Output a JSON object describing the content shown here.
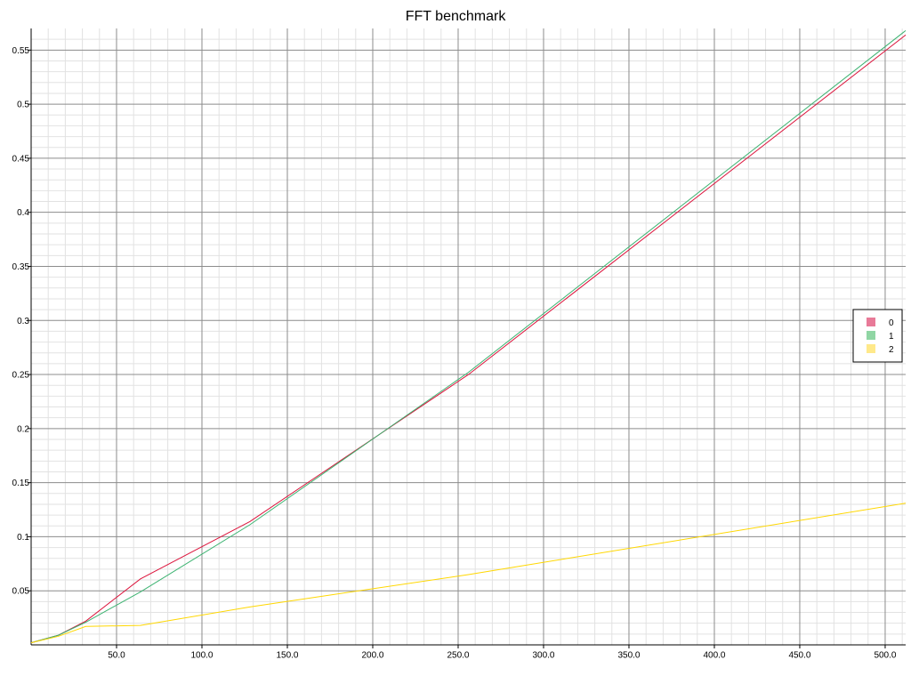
{
  "chart_data": {
    "type": "line",
    "title": "FFT benchmark",
    "xlabel": "",
    "ylabel": "",
    "xlim": [
      0,
      512
    ],
    "ylim": [
      0,
      0.57
    ],
    "x_ticks": [
      50,
      100,
      150,
      200,
      250,
      300,
      350,
      400,
      450,
      500
    ],
    "x_tick_labels": [
      "50.0",
      "100.0",
      "150.0",
      "200.0",
      "250.0",
      "300.0",
      "350.0",
      "400.0",
      "450.0",
      "500.0"
    ],
    "y_ticks": [
      0.05,
      0.1,
      0.15,
      0.2,
      0.25,
      0.3,
      0.35,
      0.4,
      0.45,
      0.5,
      0.55
    ],
    "y_tick_labels": [
      "0.05",
      "0.1",
      "0.15",
      "0.2",
      "0.25",
      "0.3",
      "0.35",
      "0.4",
      "0.45",
      "0.5",
      "0.55"
    ],
    "grid": true,
    "legend_position": "right",
    "series": [
      {
        "name": "0",
        "color": "#dc143c",
        "legend_color": "#e87a98",
        "x": [
          0,
          16,
          32,
          64,
          128,
          256,
          512
        ],
        "y": [
          0.002,
          0.009,
          0.022,
          0.061,
          0.114,
          0.25,
          0.564
        ]
      },
      {
        "name": "1",
        "color": "#3cb371",
        "legend_color": "#90d6a4",
        "x": [
          0,
          16,
          32,
          64,
          128,
          256,
          512
        ],
        "y": [
          0.002,
          0.009,
          0.021,
          0.049,
          0.111,
          0.252,
          0.568
        ]
      },
      {
        "name": "2",
        "color": "#ffd700",
        "legend_color": "#ffe98a",
        "x": [
          0,
          16,
          32,
          64,
          128,
          256,
          512
        ],
        "y": [
          0.002,
          0.008,
          0.017,
          0.018,
          0.035,
          0.065,
          0.131
        ]
      }
    ]
  }
}
